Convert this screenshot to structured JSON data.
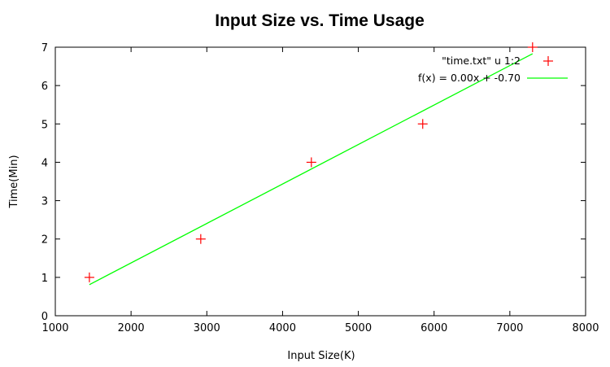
{
  "chart_data": {
    "type": "scatter",
    "title": "Input Size vs. Time Usage",
    "xlabel": "Input Size(K)",
    "ylabel": "Time(Min)",
    "xlim": [
      1000,
      8000
    ],
    "ylim": [
      0,
      7
    ],
    "x_ticks": [
      1000,
      2000,
      3000,
      4000,
      5000,
      6000,
      7000,
      8000
    ],
    "y_ticks": [
      0,
      1,
      2,
      3,
      4,
      5,
      6,
      7
    ],
    "grid": false,
    "legend_position": "top-right",
    "series": [
      {
        "name": "\"time.txt\" u 1:2",
        "kind": "points",
        "marker": "plus",
        "color": "#ff0000",
        "x": [
          1450,
          2920,
          4380,
          5850,
          7300
        ],
        "y": [
          1,
          2,
          4,
          5,
          7
        ]
      },
      {
        "name": "f(x) = 0.00x + -0.70",
        "kind": "line",
        "color": "#00ff00",
        "x": [
          1450,
          7300
        ],
        "y": [
          0.81,
          6.83
        ]
      }
    ]
  }
}
